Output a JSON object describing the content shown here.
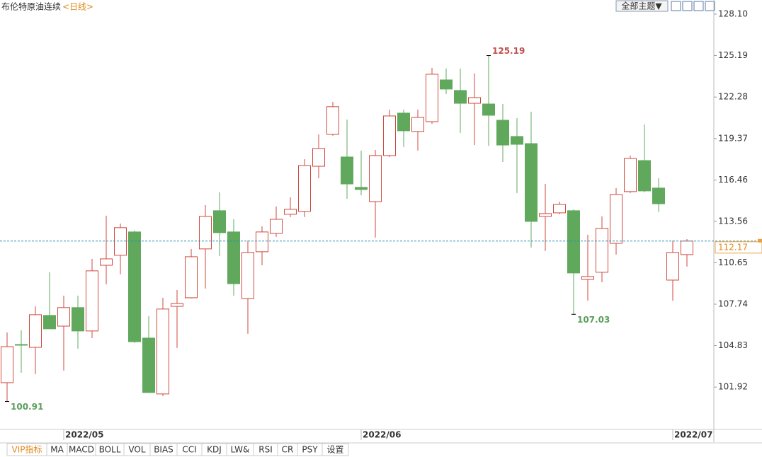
{
  "chart_data": {
    "type": "candlestick",
    "title": "布伦特原油连续",
    "period": "<日线>",
    "theme_button": "全部主题▼",
    "tabs": [
      "VIP指标",
      "MA",
      "MACD",
      "BOLL",
      "VOL",
      "BIAS",
      "CCI",
      "KDJ",
      "LW&",
      "RSI",
      "CR",
      "PSY",
      "设置"
    ],
    "categories": [
      null,
      null,
      null,
      null,
      "2022/05",
      null,
      null,
      null,
      null,
      null,
      null,
      null,
      null,
      null,
      null,
      null,
      null,
      null,
      null,
      null,
      null,
      null,
      null,
      null,
      null,
      "2022/06",
      null,
      null,
      null,
      null,
      null,
      null,
      null,
      null,
      null,
      null,
      null,
      null,
      null,
      null,
      null,
      null,
      null,
      null,
      null,
      null,
      null,
      "2022/07",
      null
    ],
    "open": [
      102.23,
      104.91,
      104.71,
      106.95,
      106.2,
      107.5,
      105.86,
      110.47,
      111.17,
      112.81,
      105.36,
      101.44,
      107.59,
      108.19,
      111.62,
      114.3,
      112.81,
      108.14,
      111.42,
      112.71,
      114.05,
      114.25,
      117.42,
      119.66,
      118.07,
      115.94,
      114.94,
      118.17,
      121.15,
      119.86,
      120.55,
      123.48,
      122.74,
      121.84,
      121.79,
      120.65,
      119.51,
      119.01,
      113.9,
      114.15,
      114.3,
      109.48,
      109.98,
      112.01,
      115.64,
      117.82,
      115.89,
      109.43,
      111.22
    ],
    "high": [
      105.76,
      105.91,
      107.59,
      109.98,
      108.34,
      108.34,
      110.92,
      113.95,
      113.4,
      112.91,
      106.9,
      108.19,
      108.74,
      111.62,
      114.69,
      115.59,
      113.7,
      112.21,
      113.2,
      114.6,
      115.24,
      117.92,
      119.66,
      121.94,
      120.7,
      118.52,
      118.57,
      121.4,
      121.4,
      121.4,
      124.33,
      124.28,
      124.28,
      123.93,
      125.19,
      121.79,
      120.8,
      121.25,
      116.18,
      114.94,
      114.4,
      112.61,
      113.9,
      115.89,
      118.17,
      120.35,
      116.58,
      112.21,
      112.31
    ],
    "low": [
      100.91,
      102.93,
      102.83,
      106.01,
      103.08,
      104.62,
      105.36,
      109.13,
      109.83,
      105.01,
      101.54,
      101.29,
      104.67,
      108.14,
      108.84,
      111.12,
      108.34,
      105.66,
      110.47,
      112.46,
      113.85,
      113.85,
      116.58,
      119.56,
      115.14,
      115.39,
      112.41,
      118.07,
      118.77,
      118.52,
      120.4,
      122.49,
      119.76,
      118.91,
      118.86,
      117.72,
      115.54,
      111.72,
      111.47,
      114.05,
      107.03,
      107.99,
      109.28,
      111.22,
      115.54,
      115.59,
      114.2,
      107.99,
      110.38
    ],
    "close": [
      104.76,
      104.86,
      107.0,
      106.01,
      107.5,
      105.86,
      110.08,
      110.92,
      113.11,
      105.11,
      101.54,
      107.4,
      107.79,
      111.07,
      113.9,
      112.76,
      109.18,
      111.37,
      112.81,
      113.7,
      114.4,
      117.47,
      118.67,
      121.6,
      116.18,
      115.79,
      118.17,
      120.95,
      119.91,
      120.85,
      123.88,
      122.84,
      121.84,
      122.24,
      121.0,
      118.91,
      118.96,
      113.55,
      114.1,
      114.74,
      109.93,
      109.68,
      113.06,
      115.44,
      117.97,
      115.69,
      114.79,
      111.37,
      112.17
    ],
    "up_color": "#cf4a3f",
    "down_color": "#5fa85c",
    "ylim": [
      99.05,
      129.09
    ],
    "yticks": [
      {
        "value": 128.1,
        "label": "128.10"
      },
      {
        "value": 125.19,
        "label": "125.19"
      },
      {
        "value": 122.28,
        "label": "122.28"
      },
      {
        "value": 119.37,
        "label": "119.37"
      },
      {
        "value": 116.46,
        "label": "116.46"
      },
      {
        "value": 113.56,
        "label": "113.56"
      },
      {
        "value": 110.65,
        "label": "110.65"
      },
      {
        "value": 107.74,
        "label": "107.74"
      },
      {
        "value": 104.83,
        "label": "104.83"
      },
      {
        "value": 101.92,
        "label": "101.92"
      }
    ],
    "grid": false
  }
}
